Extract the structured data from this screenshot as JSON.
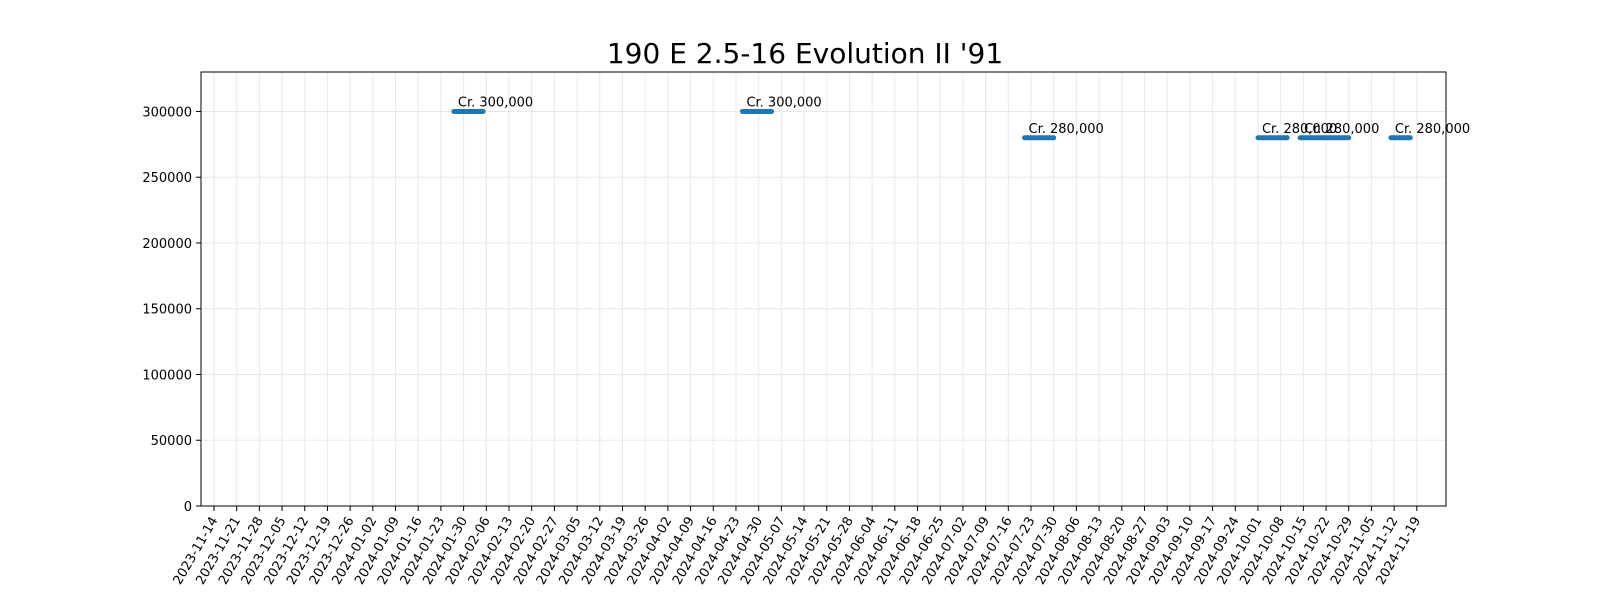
{
  "chart_data": {
    "type": "line",
    "title": "190 E 2.5-16 Evolution II '91",
    "xlabel": "",
    "ylabel": "",
    "x_range": [
      "2023-11-10",
      "2024-11-28"
    ],
    "ylim": [
      0,
      330000
    ],
    "y_ticks": [
      0,
      50000,
      100000,
      150000,
      200000,
      250000,
      300000
    ],
    "x_ticks": [
      "2023-11-14",
      "2023-11-21",
      "2023-11-28",
      "2023-12-05",
      "2023-12-12",
      "2023-12-19",
      "2023-12-26",
      "2024-01-02",
      "2024-01-09",
      "2024-01-16",
      "2024-01-23",
      "2024-01-30",
      "2024-02-06",
      "2024-02-13",
      "2024-02-20",
      "2024-02-27",
      "2024-03-05",
      "2024-03-12",
      "2024-03-19",
      "2024-03-26",
      "2024-04-02",
      "2024-04-09",
      "2024-04-16",
      "2024-04-23",
      "2024-04-30",
      "2024-05-07",
      "2024-05-14",
      "2024-05-21",
      "2024-05-28",
      "2024-06-04",
      "2024-06-11",
      "2024-06-18",
      "2024-06-25",
      "2024-07-02",
      "2024-07-09",
      "2024-07-16",
      "2024-07-23",
      "2024-07-30",
      "2024-08-06",
      "2024-08-13",
      "2024-08-20",
      "2024-08-27",
      "2024-09-03",
      "2024-09-10",
      "2024-09-17",
      "2024-09-24",
      "2024-10-01",
      "2024-10-08",
      "2024-10-15",
      "2024-10-22",
      "2024-10-29",
      "2024-11-05",
      "2024-11-12",
      "2024-11-19"
    ],
    "grid": true,
    "legend": "none",
    "color": "#1f77b4",
    "series": [
      {
        "name": "",
        "x": [
          "2024-01-27",
          "2024-02-05"
        ],
        "y": [
          300000,
          300000
        ],
        "label": "Cr. 300,000"
      },
      {
        "name": "",
        "x": [
          "2024-04-25",
          "2024-05-04"
        ],
        "y": [
          300000,
          300000
        ],
        "label": "Cr. 300,000"
      },
      {
        "name": "",
        "x": [
          "2024-07-21",
          "2024-07-30"
        ],
        "y": [
          280000,
          280000
        ],
        "label": "Cr. 280,000"
      },
      {
        "name": "",
        "x": [
          "2024-10-01",
          "2024-10-10"
        ],
        "y": [
          280000,
          280000
        ],
        "label": "Cr. 280,000"
      },
      {
        "name": "",
        "x": [
          "2024-10-14",
          "2024-10-29"
        ],
        "y": [
          280000,
          280000
        ],
        "label": "Cr. 280,000"
      },
      {
        "name": "",
        "x": [
          "2024-11-11",
          "2024-11-17"
        ],
        "y": [
          280000,
          280000
        ],
        "label": "Cr. 280,000"
      }
    ]
  }
}
